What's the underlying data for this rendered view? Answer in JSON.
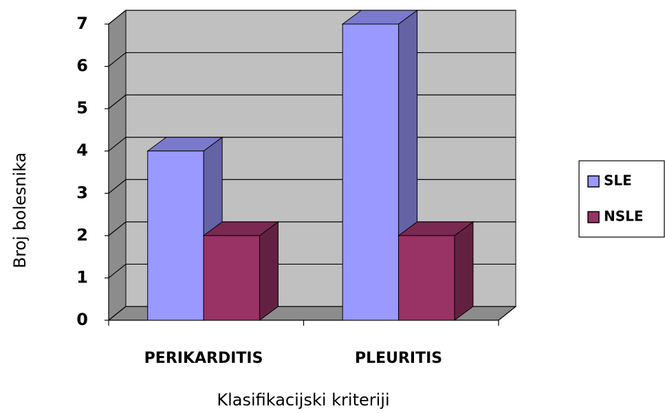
{
  "chart_data": {
    "type": "bar3d",
    "categories": [
      "PERIKARDITIS",
      "PLEURITIS"
    ],
    "series": [
      {
        "name": "SLE",
        "color": "#9999ff",
        "values": [
          4,
          7
        ]
      },
      {
        "name": "NSLE",
        "color": "#993366",
        "values": [
          2,
          2
        ]
      }
    ],
    "ylim": [
      0,
      7
    ],
    "yticks": [
      0,
      1,
      2,
      3,
      4,
      5,
      6,
      7
    ],
    "grid": true,
    "x_label": "Klasifikacijski kriteriji",
    "y_label": "Broj bolesnika",
    "legend": "right"
  }
}
